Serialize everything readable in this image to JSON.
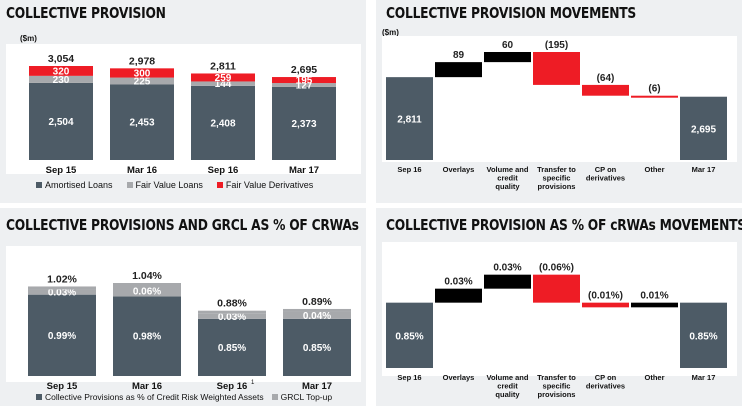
{
  "panels": {
    "p1": {
      "title": "COLLECTIVE PROVISION",
      "unit": "($m)"
    },
    "p2": {
      "title": "COLLECTIVE PROVISION MOVEMENTS",
      "unit": "($m)"
    },
    "p3": {
      "title": "COLLECTIVE PROVISIONS AND GRCL AS % OF CRWAs"
    },
    "p4": {
      "title": "COLLECTIVE PROVISION AS % OF cRWAs MOVEMENTS"
    }
  },
  "colors": {
    "slate": "#4d5b66",
    "grey": "#a7a9ac",
    "red": "#ee1c25",
    "black": "#000000"
  },
  "chart_data": [
    {
      "type": "bar",
      "stacked": true,
      "title": "COLLECTIVE PROVISION",
      "ylabel": "($m)",
      "categories": [
        "Sep 15",
        "Mar 16",
        "Sep 16",
        "Mar 17"
      ],
      "series": [
        {
          "name": "Amortised Loans",
          "values": [
            2504,
            2453,
            2408,
            2373
          ],
          "labels": [
            "2,504",
            "2,453",
            "2,408",
            "2,373"
          ],
          "color": "#4d5b66"
        },
        {
          "name": "Fair Value Loans",
          "values": [
            230,
            225,
            144,
            127
          ],
          "labels": [
            "230",
            "225",
            "144",
            "127"
          ],
          "color": "#a7a9ac"
        },
        {
          "name": "Fair Value Derivatives",
          "values": [
            320,
            300,
            259,
            195
          ],
          "labels": [
            "320",
            "300",
            "259",
            "195"
          ],
          "color": "#ee1c25"
        }
      ],
      "totals": [
        "3,054",
        "2,978",
        "2,811",
        "2,695"
      ],
      "legend_position": "bottom"
    },
    {
      "type": "waterfall",
      "title": "COLLECTIVE PROVISION MOVEMENTS",
      "ylabel": "($m)",
      "categories": [
        "Sep 16",
        "Overlays",
        "Volume and credit quality",
        "Transfer to specific provisions",
        "CP on derivatives",
        "Other",
        "Mar 17"
      ],
      "values": [
        2811,
        89,
        60,
        -195,
        -64,
        -6,
        2695
      ],
      "labels": [
        "2,811",
        "89",
        "60",
        "(195)",
        "(64)",
        "(6)",
        "2,695"
      ],
      "kinds": [
        "total",
        "increase",
        "increase",
        "decrease",
        "decrease",
        "decrease",
        "total"
      ]
    },
    {
      "type": "bar",
      "stacked": true,
      "title": "COLLECTIVE PROVISIONS AND GRCL AS % OF CRWAs",
      "categories": [
        "Sep 15",
        "Mar 16",
        "Sep 16",
        "Mar 17"
      ],
      "footnote_marks": [
        "",
        "",
        "1",
        ""
      ],
      "series": [
        {
          "name": "Collective Provisions as % of Credit Risk Weighted Assets",
          "values": [
            0.99,
            0.98,
            0.85,
            0.85
          ],
          "labels": [
            "0.99%",
            "0.98%",
            "0.85%",
            "0.85%"
          ],
          "color": "#4d5b66"
        },
        {
          "name": "GRCL Top-up",
          "values": [
            0.03,
            0.06,
            0.03,
            0.04
          ],
          "labels": [
            "0.03%",
            "0.06%",
            "0.03%",
            "0.04%"
          ],
          "color": "#a7a9ac"
        }
      ],
      "totals": [
        "1.02%",
        "1.04%",
        "0.88%",
        "0.89%"
      ],
      "legend_position": "bottom"
    },
    {
      "type": "waterfall",
      "title": "COLLECTIVE PROVISION AS % OF cRWAs MOVEMENTS",
      "categories": [
        "Sep 16",
        "Overlays",
        "Volume and credit quality",
        "Transfer to specific provisions",
        "CP on derivatives",
        "Other",
        "Mar 17"
      ],
      "values": [
        0.85,
        0.03,
        0.03,
        -0.06,
        -0.01,
        0.01,
        0.85
      ],
      "labels": [
        "0.85%",
        "0.03%",
        "0.03%",
        "(0.06%)",
        "(0.01%)",
        "0.01%",
        "0.85%"
      ],
      "kinds": [
        "total",
        "increase",
        "increase",
        "decrease",
        "decrease",
        "increase",
        "total"
      ]
    }
  ]
}
